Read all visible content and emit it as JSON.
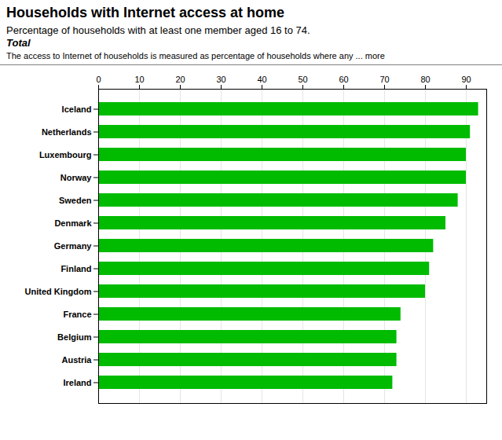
{
  "chart_data": {
    "type": "bar",
    "orientation": "horizontal",
    "title": "Households with Internet access at home",
    "subtitle": [
      "Percentage of households with at least one member aged 16 to 74.",
      "Total",
      "The access to Internet of households is measured as percentage of households where any ... more"
    ],
    "categories": [
      "Ireland",
      "Austria",
      "Belgium",
      "France",
      "United Kingdom",
      "Finland",
      "Germany",
      "Denmark",
      "Sweden",
      "Norway",
      "Luxembourg",
      "Netherlands",
      "Iceland"
    ],
    "values": [
      72,
      73,
      73,
      74,
      80,
      81,
      82,
      85,
      88,
      90,
      90,
      91,
      93
    ],
    "color": "#00BB00",
    "xlim": [
      0,
      95
    ],
    "xticks": [
      0,
      10,
      20,
      30,
      40,
      50,
      60,
      70,
      80,
      90
    ],
    "grid": true
  }
}
